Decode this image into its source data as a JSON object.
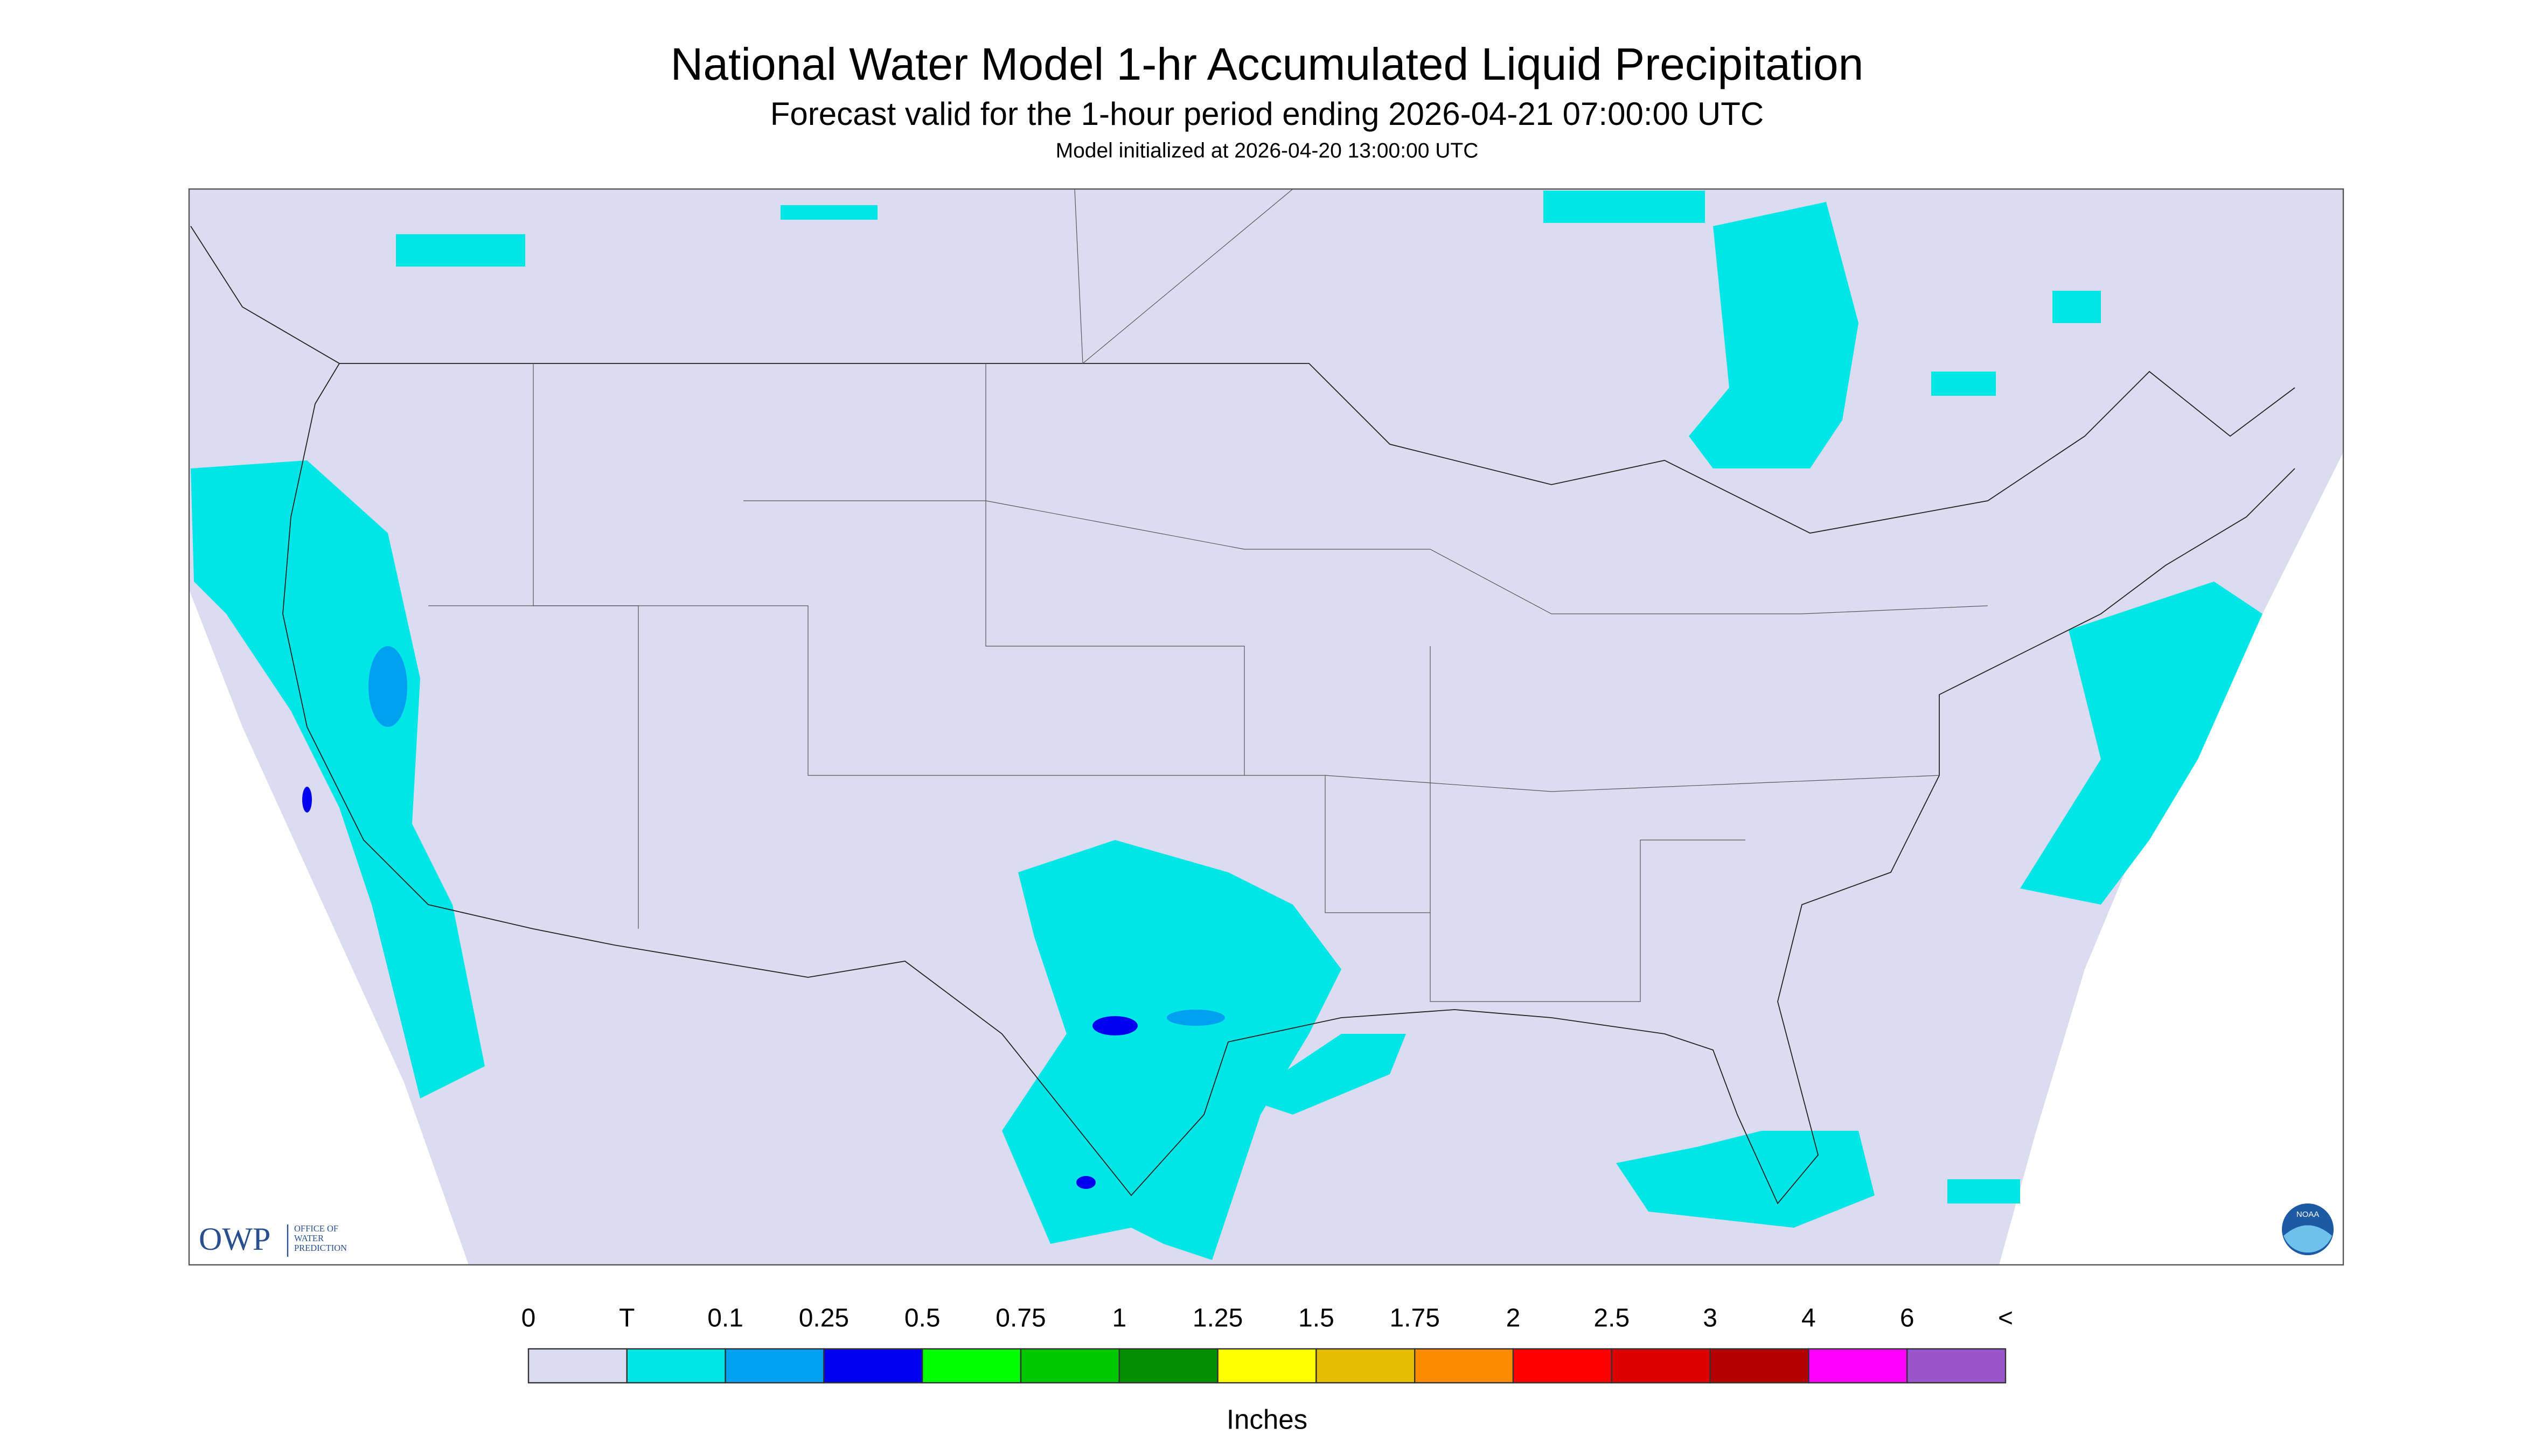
{
  "header": {
    "title": "National Water Model 1-hr Accumulated Liquid Precipitation",
    "subtitle": "Forecast valid for the 1-hour period ending 2026-04-21 07:00:00 UTC",
    "initialized": "Model initialized at 2026-04-20 13:00:00 UTC"
  },
  "logo": {
    "owp": "OWP",
    "lines": [
      "OFFICE OF",
      "WATER",
      "PREDICTION"
    ],
    "noaa": "NOAA"
  },
  "legend": {
    "labels": [
      "0",
      "T",
      "0.1",
      "0.25",
      "0.5",
      "0.75",
      "1",
      "1.25",
      "1.5",
      "1.75",
      "2",
      "2.5",
      "3",
      "4",
      "6",
      "<"
    ],
    "colors": [
      "#dcdcf0",
      "#00e6e6",
      "#00a0f0",
      "#0000f0",
      "#00ff00",
      "#00c800",
      "#009000",
      "#ffff00",
      "#e6be00",
      "#ff8c00",
      "#ff0000",
      "#dc0000",
      "#b40000",
      "#ff00ff",
      "#9955cc"
    ],
    "unit": "Inches"
  }
}
